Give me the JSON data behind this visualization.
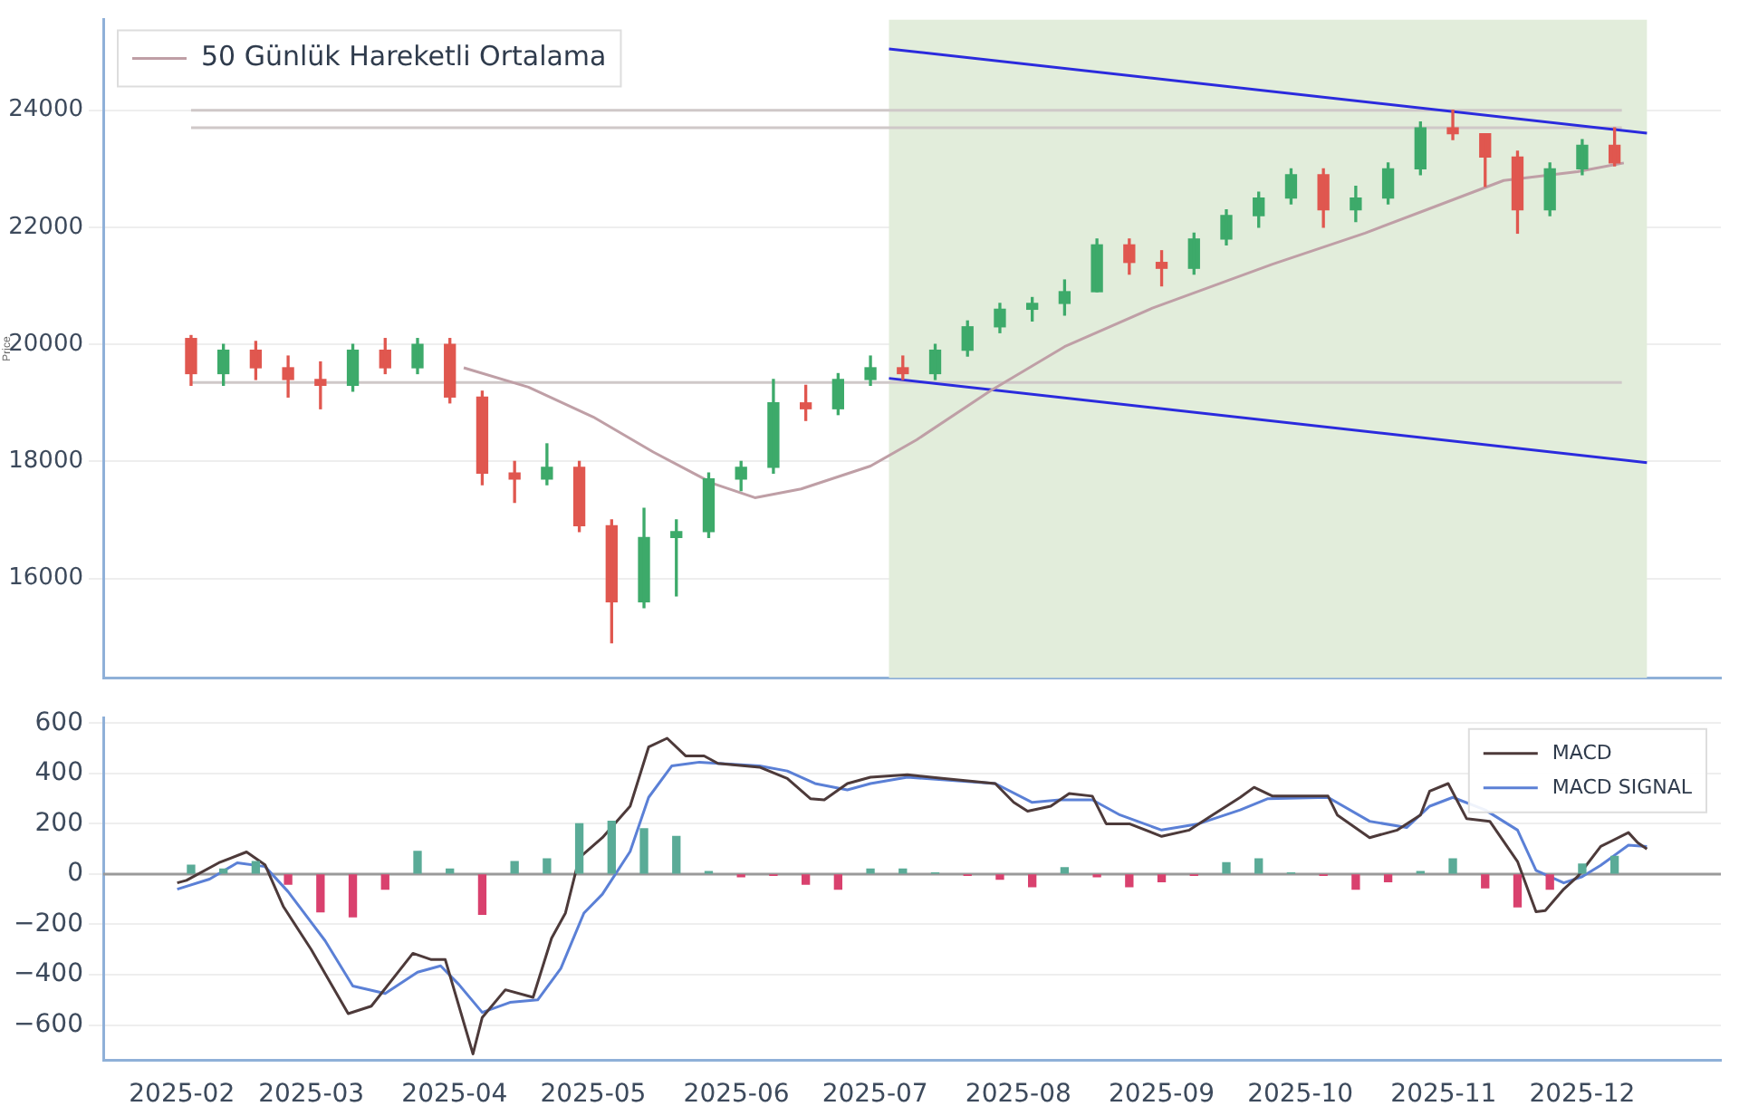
{
  "chart_data": [
    {
      "type": "candlestick",
      "ylabel": "Price",
      "xlim": [
        "2025-01-15",
        "2025-12-31"
      ],
      "xticks": [
        "2025-02",
        "2025-03",
        "2025-04",
        "2025-05",
        "2025-06",
        "2025-07",
        "2025-08",
        "2025-09",
        "2025-10",
        "2025-11",
        "2025-12"
      ],
      "ylim": [
        14300,
        25550
      ],
      "yticks": [
        16000,
        18000,
        20000,
        22000,
        24000
      ],
      "tick_labels": "y",
      "grid": "y",
      "legend": "top left",
      "x": [
        "2025-02-03",
        "2025-02-10",
        "2025-02-17",
        "2025-02-24",
        "2025-03-03",
        "2025-03-10",
        "2025-03-17",
        "2025-03-24",
        "2025-03-31",
        "2025-04-07",
        "2025-04-14",
        "2025-04-21",
        "2025-04-28",
        "2025-05-05",
        "2025-05-12",
        "2025-05-19",
        "2025-05-26",
        "2025-06-02",
        "2025-06-09",
        "2025-06-16",
        "2025-06-23",
        "2025-06-30",
        "2025-07-07",
        "2025-07-14",
        "2025-07-21",
        "2025-07-28",
        "2025-08-04",
        "2025-08-11",
        "2025-08-18",
        "2025-08-25",
        "2025-09-01",
        "2025-09-08",
        "2025-09-15",
        "2025-09-22",
        "2025-09-29",
        "2025-10-06",
        "2025-10-13",
        "2025-10-20",
        "2025-10-27",
        "2025-11-03",
        "2025-11-10",
        "2025-11-17",
        "2025-11-24",
        "2025-12-01",
        "2025-12-08"
      ],
      "ref_lines": [
        {
          "axis": "y",
          "value": 24000,
          "color": "#cfc8c8"
        },
        {
          "axis": "y",
          "value": 23700,
          "color": "#cfc8c8"
        },
        {
          "axis": "y",
          "value": 19350,
          "color": "#cfc8c8"
        }
      ],
      "bands": [
        {
          "axis": "x",
          "from": "2025-07-04",
          "to": "2025-12-15",
          "color": "#e2eddb"
        }
      ],
      "series": [
        {
          "ohlc": [
            [
              20100,
              20150,
              19300,
              19500
            ],
            [
              19500,
              20000,
              19300,
              19900
            ],
            [
              19900,
              20050,
              19400,
              19600
            ],
            [
              19600,
              19800,
              19100,
              19400
            ],
            [
              19400,
              19700,
              18900,
              19300
            ],
            [
              19300,
              20000,
              19200,
              19900
            ],
            [
              19900,
              20100,
              19500,
              19600
            ],
            [
              19600,
              20100,
              19500,
              20000
            ],
            [
              20000,
              20100,
              19000,
              19100
            ],
            [
              19100,
              19200,
              17600,
              17800
            ],
            [
              17800,
              18000,
              17300,
              17700
            ],
            [
              17700,
              18300,
              17600,
              17900
            ],
            [
              17900,
              18000,
              16800,
              16900
            ],
            [
              16900,
              17000,
              14900,
              15600
            ],
            [
              15600,
              17200,
              15500,
              16700
            ],
            [
              16700,
              17000,
              15700,
              16800
            ],
            [
              16800,
              17800,
              16700,
              17700
            ],
            [
              17700,
              18000,
              17500,
              17900
            ],
            [
              17900,
              19400,
              17800,
              19000
            ],
            [
              19000,
              19300,
              18700,
              18900
            ],
            [
              18900,
              19500,
              18800,
              19400
            ],
            [
              19400,
              19800,
              19300,
              19600
            ],
            [
              19600,
              19800,
              19400,
              19500
            ],
            [
              19500,
              20000,
              19400,
              19900
            ],
            [
              19900,
              20400,
              19800,
              20300
            ],
            [
              20300,
              20700,
              20200,
              20600
            ],
            [
              20600,
              20800,
              20400,
              20700
            ],
            [
              20700,
              21100,
              20500,
              20900
            ],
            [
              20900,
              21800,
              20900,
              21700
            ],
            [
              21700,
              21800,
              21200,
              21400
            ],
            [
              21400,
              21600,
              21000,
              21300
            ],
            [
              21300,
              21900,
              21200,
              21800
            ],
            [
              21800,
              22300,
              21700,
              22200
            ],
            [
              22200,
              22600,
              22000,
              22500
            ],
            [
              22500,
              23000,
              22400,
              22900
            ],
            [
              22900,
              23000,
              22000,
              22300
            ],
            [
              22300,
              22700,
              22100,
              22500
            ],
            [
              22500,
              23100,
              22400,
              23000
            ],
            [
              23000,
              23800,
              22900,
              23700
            ],
            [
              23700,
              24000,
              23500,
              23600
            ],
            [
              23600,
              23600,
              22700,
              23200
            ],
            [
              23200,
              23300,
              21900,
              22300
            ],
            [
              22300,
              23100,
              22200,
              23000
            ],
            [
              23000,
              23500,
              22900,
              23400
            ],
            [
              23400,
              23700,
              23050,
              23100
            ]
          ],
          "colors": [
            "#e0574f",
            "#3daa6a",
            "#e0574f",
            "#e0574f",
            "#e0574f",
            "#3daa6a",
            "#e0574f",
            "#3daa6a",
            "#e0574f",
            "#e0574f",
            "#e0574f",
            "#3daa6a",
            "#e0574f",
            "#e0574f",
            "#3daa6a",
            "#3daa6a",
            "#3daa6a",
            "#3daa6a",
            "#3daa6a",
            "#e0574f",
            "#3daa6a",
            "#3daa6a",
            "#e0574f",
            "#3daa6a",
            "#3daa6a",
            "#3daa6a",
            "#3daa6a",
            "#3daa6a",
            "#3daa6a",
            "#e0574f",
            "#e0574f",
            "#3daa6a",
            "#3daa6a",
            "#3daa6a",
            "#3daa6a",
            "#e0574f",
            "#3daa6a",
            "#3daa6a",
            "#3daa6a",
            "#e0574f",
            "#e0574f",
            "#e0574f",
            "#3daa6a",
            "#3daa6a",
            "#e0574f"
          ]
        },
        {
          "type": "line",
          "name": "50 Günlük Hareketli Ortalama",
          "color": "#bf9fa6",
          "x": [
            "2025-04-03",
            "2025-04-17",
            "2025-05-01",
            "2025-05-14",
            "2025-05-27",
            "2025-06-05",
            "2025-06-15",
            "2025-06-30",
            "2025-07-10",
            "2025-07-26",
            "2025-08-11",
            "2025-08-30",
            "2025-09-25",
            "2025-10-15",
            "2025-10-29",
            "2025-11-14",
            "2025-11-30",
            "2025-12-10"
          ],
          "values": [
            19600,
            19270,
            18760,
            18160,
            17620,
            17380,
            17530,
            17920,
            18370,
            19210,
            19960,
            20620,
            21370,
            21900,
            22320,
            22800,
            22950,
            23100
          ]
        },
        {
          "type": "line",
          "color": "#2b2bdd",
          "x": [
            "2025-07-04",
            "2025-12-15"
          ],
          "values": [
            25050,
            23610
          ]
        },
        {
          "type": "line",
          "color": "#2b2bdd",
          "x": [
            "2025-07-04",
            "2025-12-15"
          ],
          "values": [
            19420,
            17980
          ]
        }
      ]
    },
    {
      "type": "line",
      "xlim": [
        "2025-01-15",
        "2025-12-31"
      ],
      "xticks": [
        "2025-02",
        "2025-03",
        "2025-04",
        "2025-05",
        "2025-06",
        "2025-07",
        "2025-08",
        "2025-09",
        "2025-10",
        "2025-11",
        "2025-12"
      ],
      "ylim": [
        -740,
        620
      ],
      "yticks": [
        {
          "value": -600,
          "label": "−600"
        },
        {
          "value": -400,
          "label": "−400"
        },
        {
          "value": -200,
          "label": "−200"
        },
        0,
        200,
        400,
        600
      ],
      "grid": "y",
      "legend": "top right",
      "x": [
        "2025-02-03",
        "2025-02-10",
        "2025-02-17",
        "2025-02-24",
        "2025-03-03",
        "2025-03-10",
        "2025-03-17",
        "2025-03-24",
        "2025-03-31",
        "2025-04-07",
        "2025-04-14",
        "2025-04-21",
        "2025-04-28",
        "2025-05-05",
        "2025-05-12",
        "2025-05-19",
        "2025-05-26",
        "2025-06-02",
        "2025-06-09",
        "2025-06-16",
        "2025-06-23",
        "2025-06-30",
        "2025-07-07",
        "2025-07-14",
        "2025-07-21",
        "2025-07-28",
        "2025-08-04",
        "2025-08-11",
        "2025-08-18",
        "2025-08-25",
        "2025-09-01",
        "2025-09-08",
        "2025-09-15",
        "2025-09-22",
        "2025-09-29",
        "2025-10-06",
        "2025-10-13",
        "2025-10-20",
        "2025-10-27",
        "2025-11-03",
        "2025-11-10",
        "2025-11-17",
        "2025-11-24",
        "2025-12-01",
        "2025-12-08"
      ],
      "ref_lines": [
        {
          "axis": "y",
          "value": 0,
          "color": "#9a9a9a"
        }
      ],
      "series": [
        {
          "type": "bar",
          "values": [
            35,
            20,
            50,
            -40,
            -150,
            -170,
            -60,
            90,
            20,
            -160,
            50,
            60,
            200,
            210,
            180,
            150,
            10,
            -10,
            -5,
            -40,
            -60,
            20,
            20,
            5,
            -5,
            -20,
            -50,
            25,
            -10,
            -50,
            -30,
            -5,
            45,
            60,
            5,
            -5,
            -60,
            -30,
            10,
            60,
            -55,
            -130,
            -60,
            40,
            70
          ],
          "colors": [
            "#5aab97",
            "#5aab97",
            "#5aab97",
            "#d9416e",
            "#d9416e",
            "#d9416e",
            "#d9416e",
            "#5aab97",
            "#5aab97",
            "#d9416e",
            "#5aab97",
            "#5aab97",
            "#5aab97",
            "#5aab97",
            "#5aab97",
            "#5aab97",
            "#5aab97",
            "#d9416e",
            "#d9416e",
            "#d9416e",
            "#d9416e",
            "#5aab97",
            "#5aab97",
            "#5aab97",
            "#d9416e",
            "#d9416e",
            "#d9416e",
            "#5aab97",
            "#d9416e",
            "#d9416e",
            "#d9416e",
            "#d9416e",
            "#5aab97",
            "#5aab97",
            "#5aab97",
            "#d9416e",
            "#d9416e",
            "#d9416e",
            "#5aab97",
            "#5aab97",
            "#d9416e",
            "#d9416e",
            "#d9416e",
            "#5aab97",
            "#5aab97"
          ]
        },
        {
          "name": "MACD",
          "color": "#4d3a3a",
          "x": [
            "2025-01-31",
            "2025-02-02",
            "2025-02-09",
            "2025-02-15",
            "2025-02-19",
            "2025-02-23",
            "2025-03-01",
            "2025-03-09",
            "2025-03-14",
            "2025-03-23",
            "2025-03-27",
            "2025-03-30",
            "2025-04-05",
            "2025-04-07",
            "2025-04-12",
            "2025-04-18",
            "2025-04-22",
            "2025-04-25",
            "2025-04-28",
            "2025-05-03",
            "2025-05-09",
            "2025-05-13",
            "2025-05-17",
            "2025-05-21",
            "2025-05-25",
            "2025-05-28",
            "2025-06-06",
            "2025-06-12",
            "2025-06-17",
            "2025-06-20",
            "2025-06-25",
            "2025-06-30",
            "2025-07-08",
            "2025-07-16",
            "2025-07-27",
            "2025-07-31",
            "2025-08-03",
            "2025-08-08",
            "2025-08-12",
            "2025-08-17",
            "2025-08-20",
            "2025-08-25",
            "2025-09-01",
            "2025-09-07",
            "2025-09-12",
            "2025-09-18",
            "2025-09-21",
            "2025-09-25",
            "2025-10-07",
            "2025-10-09",
            "2025-10-16",
            "2025-10-22",
            "2025-10-27",
            "2025-10-29",
            "2025-11-02",
            "2025-11-06",
            "2025-11-11",
            "2025-11-17",
            "2025-11-21",
            "2025-11-23",
            "2025-11-27",
            "2025-11-30",
            "2025-12-05",
            "2025-12-11",
            "2025-12-13",
            "2025-12-15"
          ],
          "values": [
            -35,
            -25,
            45,
            88,
            37,
            -130,
            -300,
            -555,
            -525,
            -315,
            -340,
            -340,
            -715,
            -570,
            -460,
            -490,
            -255,
            -155,
            65,
            145,
            270,
            505,
            540,
            470,
            470,
            440,
            425,
            380,
            300,
            295,
            360,
            385,
            395,
            380,
            360,
            285,
            250,
            270,
            320,
            310,
            200,
            200,
            150,
            175,
            235,
            305,
            345,
            310,
            310,
            235,
            145,
            175,
            235,
            330,
            360,
            220,
            210,
            50,
            -150,
            -145,
            -60,
            -10,
            110,
            165,
            125,
            100
          ]
        },
        {
          "name": "MACD SIGNAL",
          "color": "#5b80d6",
          "x": [
            "2025-01-31",
            "2025-02-07",
            "2025-02-13",
            "2025-02-19",
            "2025-02-24",
            "2025-03-04",
            "2025-03-10",
            "2025-03-17",
            "2025-03-24",
            "2025-03-29",
            "2025-04-02",
            "2025-04-07",
            "2025-04-13",
            "2025-04-19",
            "2025-04-24",
            "2025-04-29",
            "2025-05-03",
            "2025-05-09",
            "2025-05-13",
            "2025-05-18",
            "2025-05-24",
            "2025-06-06",
            "2025-06-12",
            "2025-06-18",
            "2025-06-25",
            "2025-06-30",
            "2025-07-08",
            "2025-07-27",
            "2025-08-04",
            "2025-08-10",
            "2025-08-17",
            "2025-08-23",
            "2025-09-01",
            "2025-09-09",
            "2025-09-18",
            "2025-09-24",
            "2025-10-07",
            "2025-10-16",
            "2025-10-24",
            "2025-10-29",
            "2025-11-03",
            "2025-11-10",
            "2025-11-17",
            "2025-11-21",
            "2025-11-27",
            "2025-12-01",
            "2025-12-05",
            "2025-12-11",
            "2025-12-15"
          ],
          "values": [
            -60,
            -20,
            45,
            30,
            -70,
            -265,
            -445,
            -475,
            -390,
            -365,
            -440,
            -550,
            -510,
            -500,
            -375,
            -155,
            -80,
            90,
            305,
            430,
            445,
            430,
            410,
            360,
            335,
            360,
            385,
            360,
            285,
            295,
            295,
            235,
            175,
            200,
            255,
            300,
            305,
            210,
            185,
            270,
            305,
            255,
            175,
            15,
            -35,
            -10,
            35,
            115,
            110
          ]
        }
      ]
    }
  ]
}
